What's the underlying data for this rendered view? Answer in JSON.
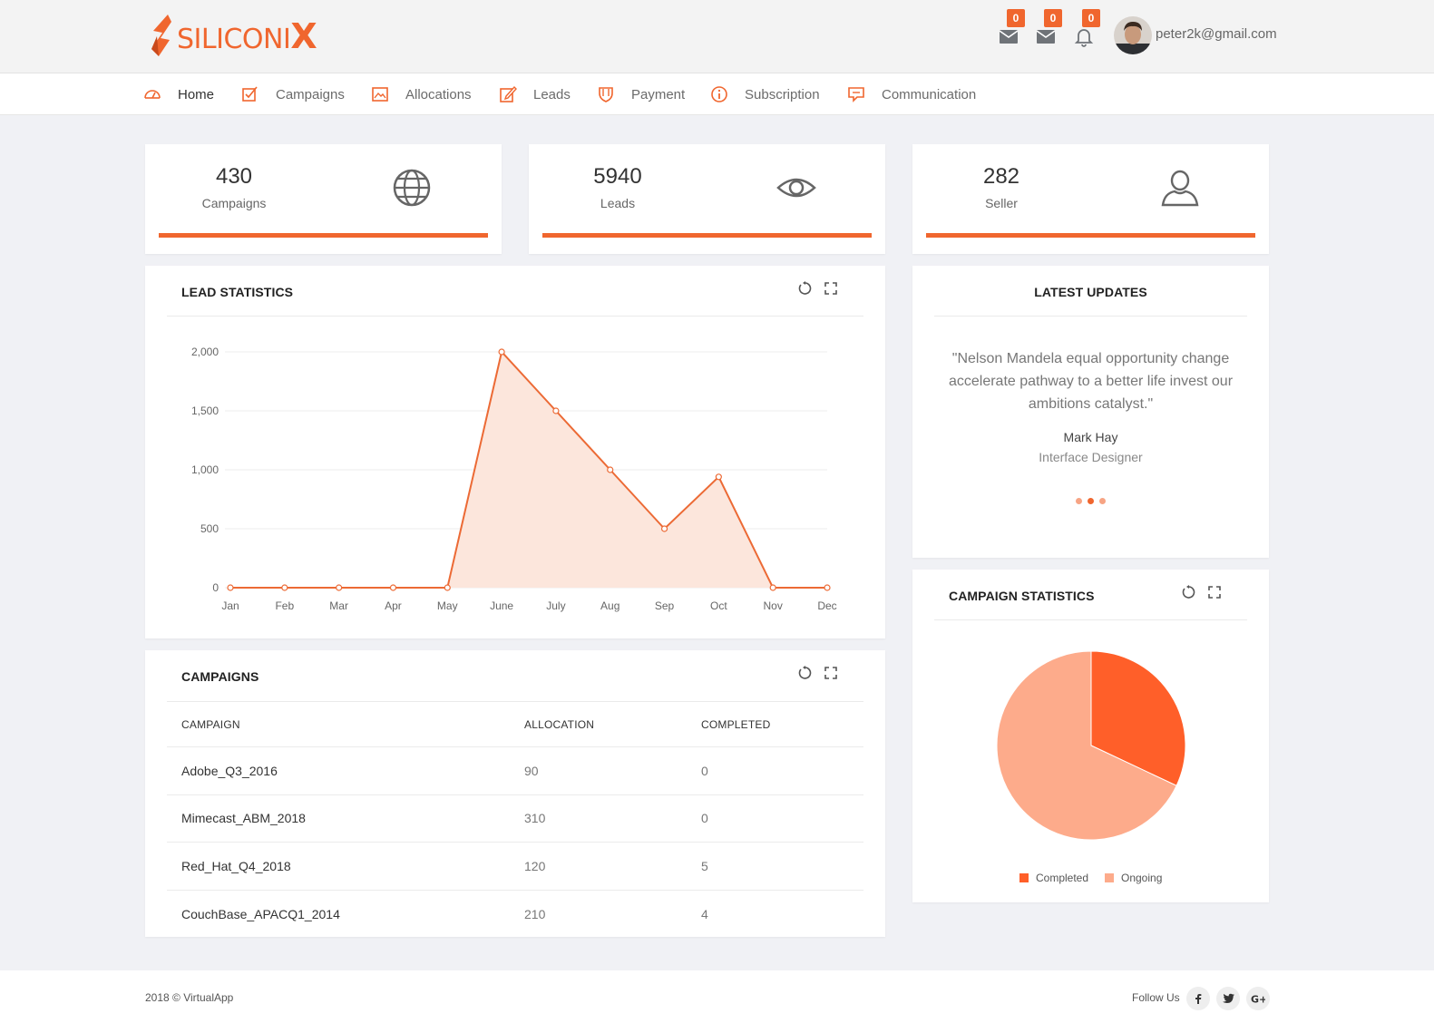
{
  "brand": {
    "name_main": "SILICONI",
    "name_x": "X"
  },
  "header": {
    "badges": [
      "0",
      "0",
      "0"
    ],
    "user_email": "peter2k@gmail.com"
  },
  "nav": [
    {
      "label": "Home",
      "icon": "dashboard-icon"
    },
    {
      "label": "Campaigns",
      "icon": "checkbox-icon"
    },
    {
      "label": "Allocations",
      "icon": "image-icon"
    },
    {
      "label": "Leads",
      "icon": "edit-icon"
    },
    {
      "label": "Payment",
      "icon": "shield-icon"
    },
    {
      "label": "Subscription",
      "icon": "info-icon"
    },
    {
      "label": "Communication",
      "icon": "chat-icon"
    }
  ],
  "stats": [
    {
      "value": "430",
      "label": "Campaigns",
      "icon": "globe-icon"
    },
    {
      "value": "5940",
      "label": "Leads",
      "icon": "eye-icon"
    },
    {
      "value": "282",
      "label": "Seller",
      "icon": "user-icon"
    }
  ],
  "lead_panel": {
    "title": "LEAD STATISTICS"
  },
  "updates": {
    "title": "LATEST UPDATES",
    "quote": "\"Nelson Mandela equal opportunity change accelerate pathway to a better life invest our ambitions catalyst.\"",
    "author": "Mark Hay",
    "role": "Interface Designer",
    "active_slide": 2,
    "slide_count": 3
  },
  "campaigns_panel": {
    "title": "CAMPAIGNS",
    "columns": [
      "CAMPAIGN",
      "ALLOCATION",
      "COMPLETED"
    ],
    "rows": [
      [
        "Adobe_Q3_2016",
        "90",
        "0"
      ],
      [
        "Mimecast_ABM_2018",
        "310",
        "0"
      ],
      [
        "Red_Hat_Q4_2018",
        "120",
        "5"
      ],
      [
        "CouchBase_APACQ1_2014",
        "210",
        "4"
      ]
    ]
  },
  "campaign_stats_panel": {
    "title": "CAMPAIGN STATISTICS"
  },
  "chart_data": [
    {
      "type": "area",
      "title": "LEAD STATISTICS",
      "categories": [
        "Jan",
        "Feb",
        "Mar",
        "Apr",
        "May",
        "June",
        "July",
        "Aug",
        "Sep",
        "Oct",
        "Nov",
        "Dec"
      ],
      "values": [
        0,
        0,
        0,
        0,
        0,
        2000,
        1500,
        1000,
        500,
        940,
        0,
        0
      ],
      "yticks": [
        "0",
        "500",
        "1,000",
        "1,500",
        "2,000"
      ],
      "ylim": [
        0,
        2000
      ],
      "grid": true,
      "colors": {
        "line": "#ec6a35",
        "fill": "#fce6dc"
      }
    },
    {
      "type": "pie",
      "title": "CAMPAIGN STATISTICS",
      "labels": [
        "Completed",
        "Ongoing"
      ],
      "values": [
        32,
        68
      ],
      "colors": [
        "#ff5f29",
        "#fdab8b"
      ],
      "legend": "bottom"
    }
  ],
  "footer": {
    "copyright": "2018 © VirtualApp",
    "follow_label": "Follow Us",
    "social": [
      "facebook-icon",
      "twitter-icon",
      "google-plus-icon"
    ]
  },
  "colors": {
    "accent": "#f0662e",
    "background": "#f0f1f5"
  }
}
